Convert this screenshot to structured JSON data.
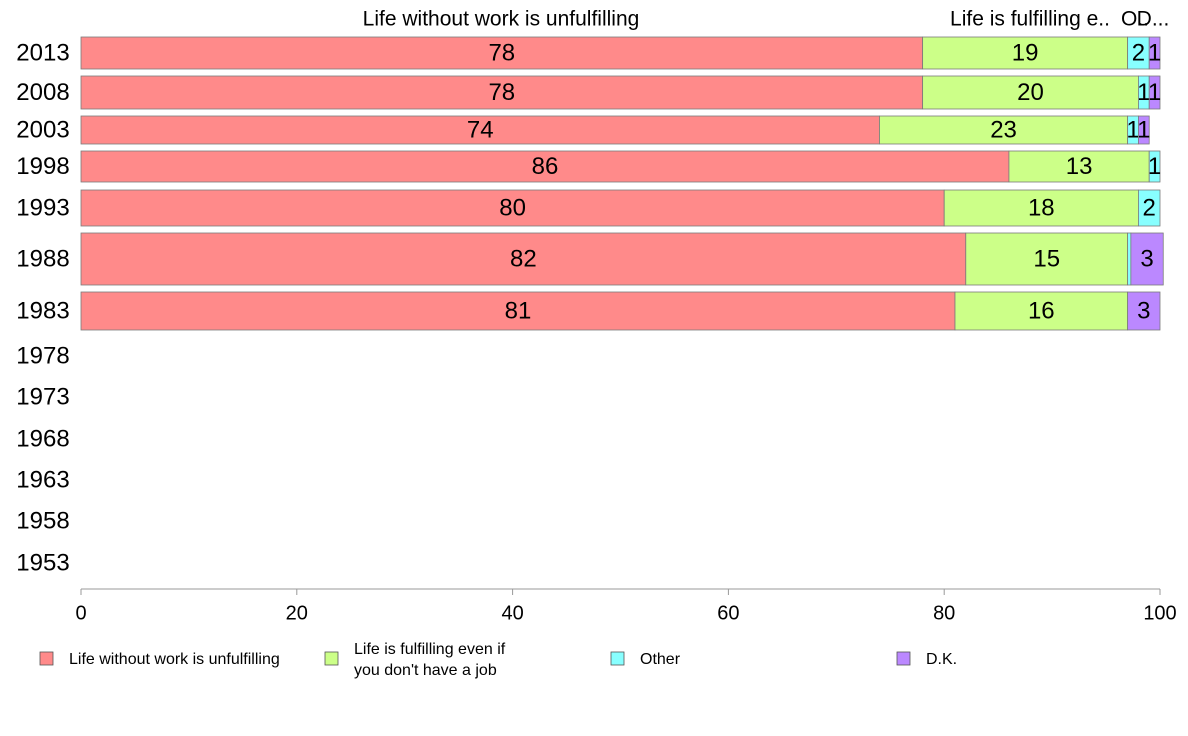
{
  "chart_data": {
    "type": "bar",
    "orientation": "horizontal",
    "stacked": true,
    "categories": [
      "2013",
      "2008",
      "2003",
      "1998",
      "1993",
      "1988",
      "1983",
      "1978",
      "1973",
      "1968",
      "1963",
      "1958",
      "1953"
    ],
    "series": [
      {
        "name": "Life without work is unfulfilling",
        "color": "#ff8a8a",
        "values": [
          78,
          78,
          74,
          86,
          80,
          82,
          81,
          null,
          null,
          null,
          null,
          null,
          null
        ]
      },
      {
        "name": "Life is fulfilling even if you don't have a job",
        "color": "#ccff88",
        "values": [
          19,
          20,
          23,
          13,
          18,
          15,
          16,
          null,
          null,
          null,
          null,
          null,
          null
        ]
      },
      {
        "name": "Other",
        "color": "#88ffff",
        "values": [
          2,
          1,
          1,
          1,
          2,
          0.3,
          0,
          null,
          null,
          null,
          null,
          null,
          null
        ]
      },
      {
        "name": "D.K.",
        "color": "#bb88ff",
        "values": [
          1,
          1,
          1,
          0,
          0,
          3,
          3,
          null,
          null,
          null,
          null,
          null,
          null
        ]
      }
    ],
    "data_labels": [
      [
        "78",
        "19",
        "2",
        "1"
      ],
      [
        "78",
        "20",
        "1",
        "1"
      ],
      [
        "74",
        "23",
        "1",
        "1"
      ],
      [
        "86",
        "13",
        "1",
        ""
      ],
      [
        "80",
        "18",
        "2",
        ""
      ],
      [
        "82",
        "15",
        "",
        "3"
      ],
      [
        "81",
        "16",
        "",
        "3"
      ],
      [],
      [],
      [],
      [],
      [],
      []
    ],
    "top_labels": [
      "Life without work is unfulfilling",
      "Life is fulfilling e..",
      "O..",
      "D..."
    ],
    "x_ticks": [
      "0",
      "20",
      "40",
      "60",
      "80",
      "100"
    ],
    "xlim": [
      0,
      100
    ],
    "grid": false,
    "legend_position": "bottom",
    "legend": [
      {
        "lines": [
          "Life without work is unfulfilling"
        ],
        "color": "#ff8a8a"
      },
      {
        "lines": [
          "Life is fulfilling even if",
          "you don't have a job"
        ],
        "color": "#ccff88"
      },
      {
        "lines": [
          "Other"
        ],
        "color": "#88ffff"
      },
      {
        "lines": [
          "D.K."
        ],
        "color": "#bb88ff"
      }
    ]
  }
}
